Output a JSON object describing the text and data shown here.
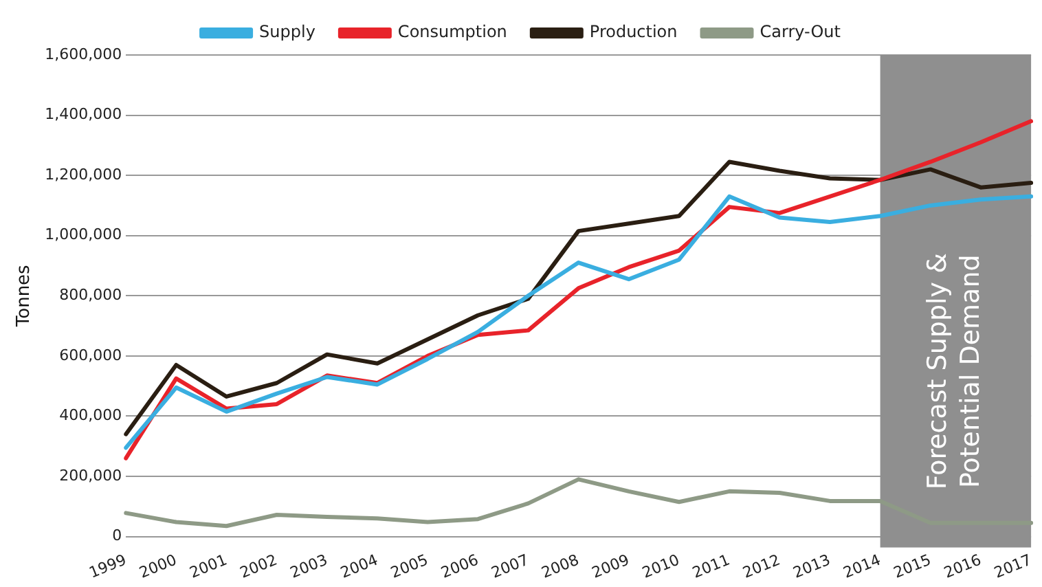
{
  "chart_data": {
    "type": "line",
    "ylabel": "Tonnes",
    "categories": [
      "1999",
      "2000",
      "2001",
      "2002",
      "2003",
      "2004",
      "2005",
      "2006",
      "2007",
      "2008",
      "2009",
      "2010",
      "2011",
      "2012",
      "2013",
      "2014",
      "2015",
      "2016",
      "2017"
    ],
    "series": [
      {
        "name": "Supply",
        "color": "#3aaee0",
        "values": [
          295000,
          495000,
          415000,
          475000,
          530000,
          505000,
          590000,
          680000,
          800000,
          910000,
          855000,
          920000,
          1130000,
          1060000,
          1045000,
          1065000,
          1100000,
          1120000,
          1130000
        ]
      },
      {
        "name": "Consumption",
        "color": "#e8232a",
        "values": [
          260000,
          525000,
          425000,
          440000,
          535000,
          510000,
          600000,
          670000,
          685000,
          825000,
          895000,
          950000,
          1095000,
          1075000,
          1130000,
          1185000,
          1245000,
          1310000,
          1380000
        ]
      },
      {
        "name": "Production",
        "color": "#2a1e12",
        "values": [
          340000,
          570000,
          465000,
          510000,
          605000,
          575000,
          655000,
          735000,
          790000,
          1015000,
          1040000,
          1065000,
          1245000,
          1215000,
          1190000,
          1185000,
          1220000,
          1160000,
          1175000
        ]
      },
      {
        "name": "Carry-Out",
        "color": "#8e9a86",
        "values": [
          78000,
          48000,
          35000,
          72000,
          65000,
          60000,
          48000,
          58000,
          110000,
          190000,
          150000,
          115000,
          150000,
          145000,
          118000,
          118000,
          45000,
          45000,
          45000
        ]
      }
    ],
    "ylim": [
      0,
      1600000
    ],
    "yticks": [
      {
        "value": 0,
        "label": "0"
      },
      {
        "value": 200000,
        "label": "200,000"
      },
      {
        "value": 400000,
        "label": "400,000"
      },
      {
        "value": 600000,
        "label": "600,000"
      },
      {
        "value": 800000,
        "label": "800,000"
      },
      {
        "value": 1000000,
        "label": "1,000,000"
      },
      {
        "value": 1200000,
        "label": "1,200,000"
      },
      {
        "value": 1400000,
        "label": "1,400,000"
      },
      {
        "value": 1600000,
        "label": "1,600,000"
      }
    ],
    "bands": [
      {
        "axis": "x",
        "from": "2014",
        "to": "2017",
        "label": "Forecast Supply & Potential Demand",
        "color": "#8f8f8f"
      }
    ],
    "grid": "y",
    "legend": "top",
    "marker": "none",
    "line_style": "solid"
  }
}
